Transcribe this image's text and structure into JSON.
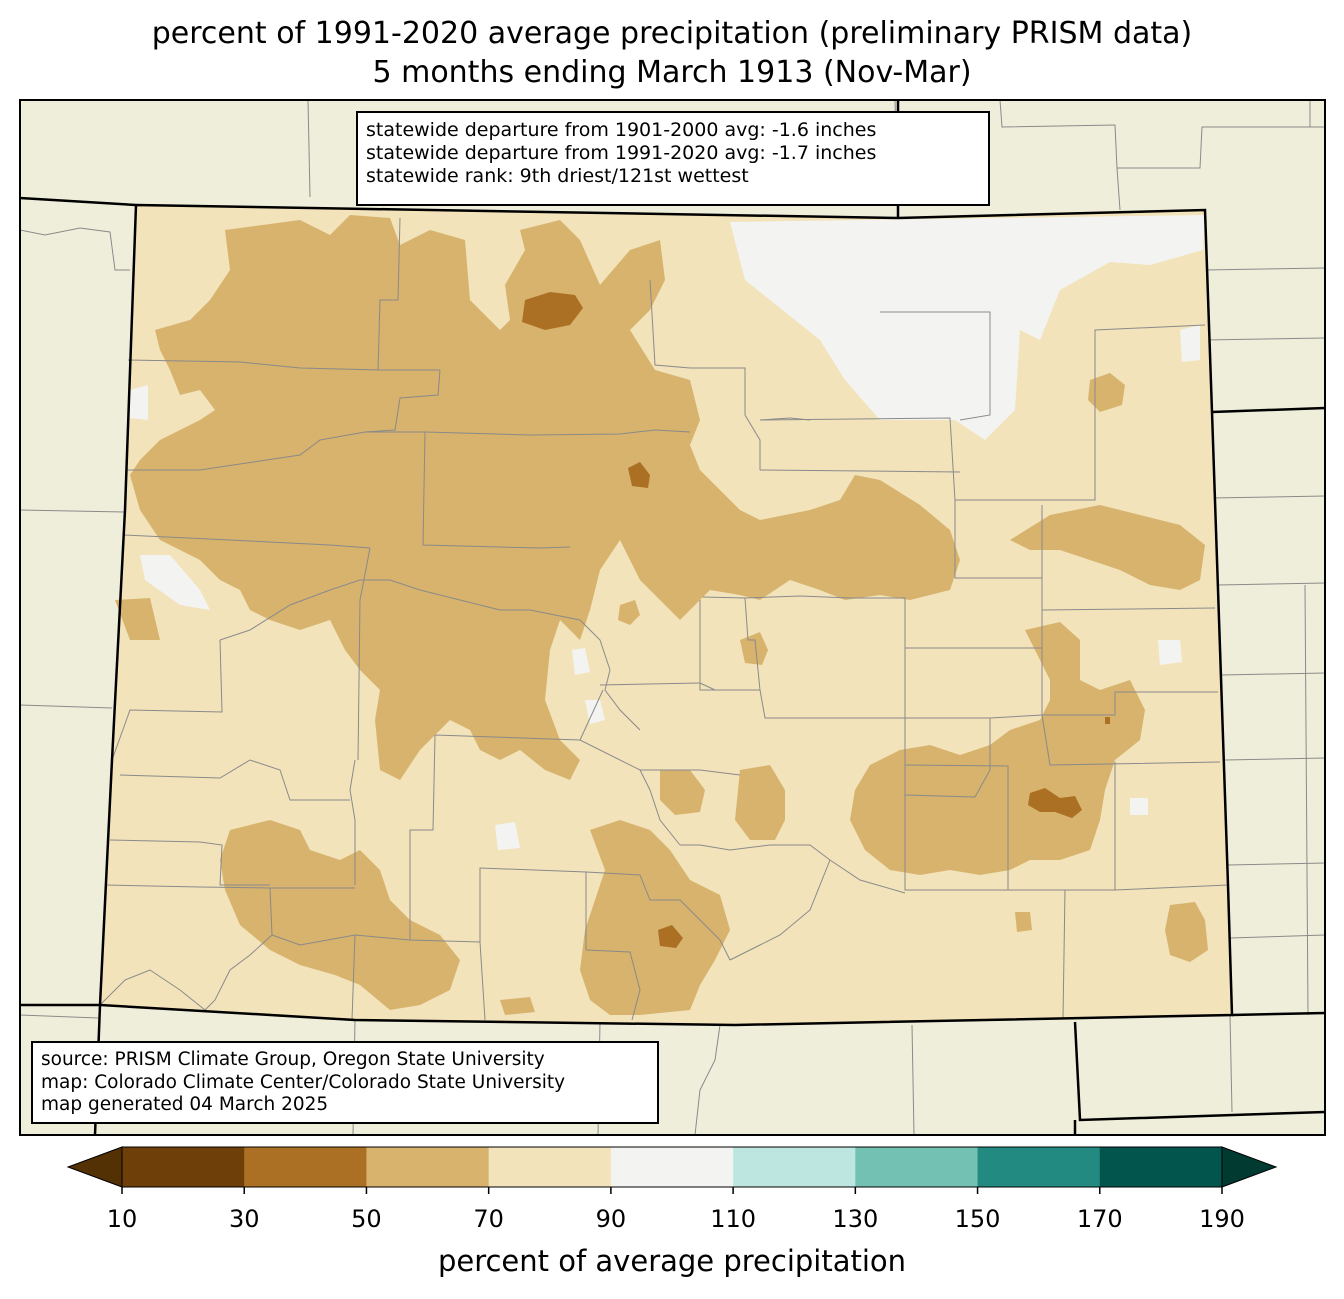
{
  "title": {
    "line1": "percent of 1991-2020 average precipitation (preliminary PRISM data)",
    "line2": "5 months ending March 1913 (Nov-Mar)"
  },
  "stats": {
    "line1": "statewide departure from 1901-2000 avg: -1.6 inches",
    "line2": "statewide departure from 1991-2020 avg: -1.7 inches",
    "line3": "statewide rank: 9th driest/121st wettest"
  },
  "source": {
    "line1": "source: PRISM Climate Group, Oregon State University",
    "line2": "map: Colorado Climate Center/Colorado State University",
    "line3": "map generated 04 March 2025"
  },
  "colorbar": {
    "label": "percent of average precipitation",
    "ticks": [
      "10",
      "30",
      "50",
      "70",
      "90",
      "110",
      "130",
      "150",
      "170",
      "190"
    ],
    "bins": [
      {
        "range": "<10",
        "color": "#543005"
      },
      {
        "range": "10-30",
        "color": "#6f3f0a"
      },
      {
        "range": "30-50",
        "color": "#ab7023"
      },
      {
        "range": "50-70",
        "color": "#d7b36d"
      },
      {
        "range": "70-90",
        "color": "#f2e3bb"
      },
      {
        "range": "90-110",
        "color": "#f3f4f1"
      },
      {
        "range": "110-130",
        "color": "#bde6e0"
      },
      {
        "range": "130-150",
        "color": "#72c1b2"
      },
      {
        "range": "150-170",
        "color": "#228a80"
      },
      {
        "range": "170-190",
        "color": "#01554c"
      },
      {
        "range": ">190",
        "color": "#003a30"
      }
    ]
  },
  "colors": {
    "background_land": "#efeedb",
    "county_lines": "#8a8a8a",
    "state_lines": "#000000"
  }
}
